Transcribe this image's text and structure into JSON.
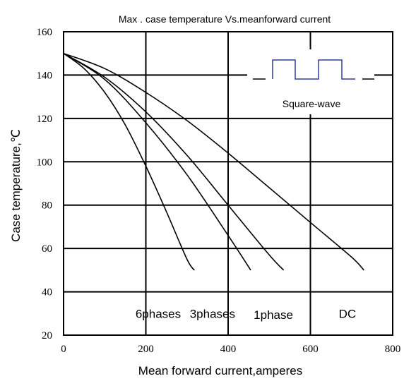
{
  "chart_data": {
    "type": "line",
    "title": "Max . case temperature Vs.meanforward current",
    "xlabel": "Mean forward current,amperes",
    "ylabel": "Case temperature,℃",
    "xlim": [
      0,
      800
    ],
    "ylim": [
      20,
      160
    ],
    "x_ticks": [
      "0",
      "200",
      "400",
      "600",
      "800"
    ],
    "y_ticks": [
      "20",
      "40",
      "60",
      "80",
      "100",
      "120",
      "140",
      "160"
    ],
    "grid": true,
    "series": [
      {
        "name": "6phases",
        "x": [
          0,
          50,
          100,
          150,
          200,
          250,
          300,
          318
        ],
        "y": [
          150,
          143,
          132,
          117,
          98,
          77,
          55,
          50
        ]
      },
      {
        "name": "3phases",
        "x": [
          0,
          100,
          200,
          300,
          400,
          455
        ],
        "y": [
          150,
          138,
          118,
          94,
          66,
          50
        ]
      },
      {
        "name": "1phase",
        "x": [
          0,
          100,
          200,
          300,
          400,
          500,
          535
        ],
        "y": [
          150,
          139,
          123,
          103,
          80,
          57,
          50
        ]
      },
      {
        "name": "DC",
        "x": [
          0,
          100,
          200,
          300,
          400,
          500,
          600,
          700,
          730
        ],
        "y": [
          150,
          143,
          132,
          119,
          104,
          88,
          72,
          56,
          50
        ]
      }
    ],
    "curve_labels": [
      {
        "text": "6phases",
        "x": 230,
        "y": 30
      },
      {
        "text": "3phases",
        "x": 362,
        "y": 30
      },
      {
        "text": "1phase",
        "x": 510,
        "y": 29.5
      },
      {
        "text": "DC",
        "x": 690,
        "y": 30
      }
    ],
    "inset": {
      "label": "Square-wave",
      "color": "#2e3d9e"
    }
  }
}
